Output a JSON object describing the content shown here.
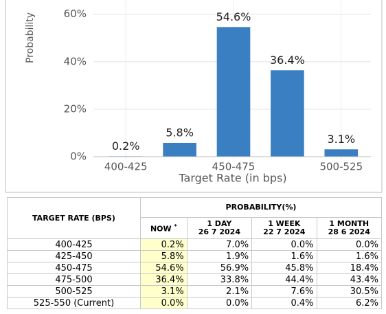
{
  "chart_data": {
    "type": "bar",
    "x_label": "Target Rate (in bps)",
    "y_label": "Probability",
    "categories": [
      "400-425",
      null,
      "450-475",
      null,
      "500-525"
    ],
    "values": [
      0.2,
      5.8,
      54.6,
      36.4,
      3.1
    ],
    "value_labels": [
      "0.2%",
      "5.8%",
      "54.6%",
      "36.4%",
      "3.1%"
    ],
    "color": "#3a7fc1",
    "ylim": [
      0,
      66
    ],
    "yticks": [
      {
        "value": 0,
        "label": "0%"
      },
      {
        "value": 20,
        "label": "20%"
      },
      {
        "value": 40,
        "label": "40%"
      },
      {
        "value": 60,
        "label": "60%"
      }
    ],
    "grid": true
  },
  "table": {
    "rate_header": "TARGET RATE (BPS)",
    "prob_header": "PROBABILITY(%)",
    "columns": [
      {
        "label": "NOW",
        "note": "*"
      },
      {
        "label": "1 DAY",
        "date": "26 7 2024"
      },
      {
        "label": "1 WEEK",
        "date": "22 7 2024"
      },
      {
        "label": "1 MONTH",
        "date": "28 6 2024"
      }
    ],
    "rows": [
      [
        "400-425",
        "0.2%",
        "7.0%",
        "0.0%",
        "0.0%"
      ],
      [
        "425-450",
        "5.8%",
        "1.9%",
        "1.6%",
        "1.6%"
      ],
      [
        "450-475",
        "54.6%",
        "56.9%",
        "45.8%",
        "18.4%"
      ],
      [
        "475-500",
        "36.4%",
        "33.8%",
        "44.4%",
        "43.4%"
      ],
      [
        "500-525",
        "3.1%",
        "2.1%",
        "7.6%",
        "30.5%"
      ],
      [
        "525-550 (Current)",
        "0.0%",
        "0.0%",
        "0.4%",
        "6.2%"
      ]
    ]
  }
}
